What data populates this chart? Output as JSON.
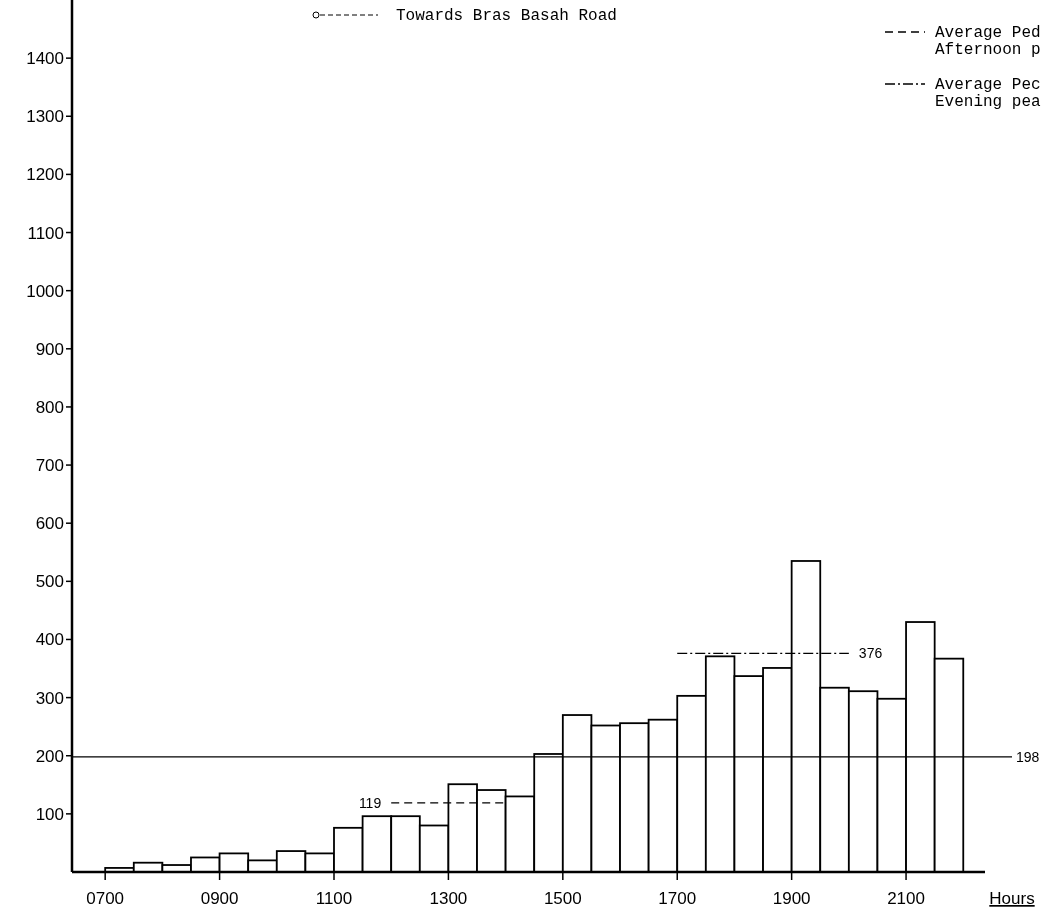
{
  "chart_data": {
    "type": "bar",
    "xlabel": "Hours",
    "xlim": [
      642,
      2238
    ],
    "xticks": [
      {
        "value": 700,
        "label": "0700"
      },
      {
        "value": 900,
        "label": "0900"
      },
      {
        "value": 1100,
        "label": "1100"
      },
      {
        "value": 1300,
        "label": "1300"
      },
      {
        "value": 1500,
        "label": "1500"
      },
      {
        "value": 1700,
        "label": "1700"
      },
      {
        "value": 1900,
        "label": "1900"
      },
      {
        "value": 2100,
        "label": "2100"
      }
    ],
    "ylim": [
      0,
      1500
    ],
    "yticks": [
      100,
      200,
      300,
      400,
      500,
      600,
      700,
      800,
      900,
      1000,
      1100,
      1200,
      1300,
      1400
    ],
    "legend": "top right",
    "series": [
      {
        "color": "#ffffff",
        "x": [
          725,
          775,
          825,
          875,
          925,
          975,
          1025,
          1075,
          1125,
          1175,
          1225,
          1275,
          1325,
          1375,
          1425,
          1475,
          1525,
          1575,
          1625,
          1675,
          1725,
          1775,
          1825,
          1875,
          1925,
          1975,
          2025,
          2075,
          2125,
          2175
        ],
        "values": [
          7,
          16,
          12,
          25,
          32,
          20,
          36,
          32,
          76,
          96,
          96,
          80,
          151,
          141,
          130,
          203,
          270,
          252,
          256,
          262,
          303,
          371,
          337,
          351,
          535,
          317,
          311,
          298,
          430,
          367
        ]
      },
      {
        "type": "line",
        "name": "Average Ped\nAfternoon p",
        "color": "#000000",
        "line_style": "dashed",
        "x": [
          1200,
          1400
        ],
        "values": [
          119,
          119
        ],
        "value_labels": [
          "119",
          null
        ]
      },
      {
        "type": "line",
        "name": "Average Pec\nEvening pea",
        "color": "#000000",
        "line_style": "dotted",
        "x": [
          1700,
          2000
        ],
        "values": [
          376,
          376
        ],
        "value_labels": [
          null,
          "376"
        ]
      }
    ],
    "ref_lines": [
      {
        "axis": "y",
        "value": 198,
        "label": "198",
        "color": "#000000"
      }
    ],
    "annotations": [
      "Towards Bras Basah Road"
    ]
  }
}
